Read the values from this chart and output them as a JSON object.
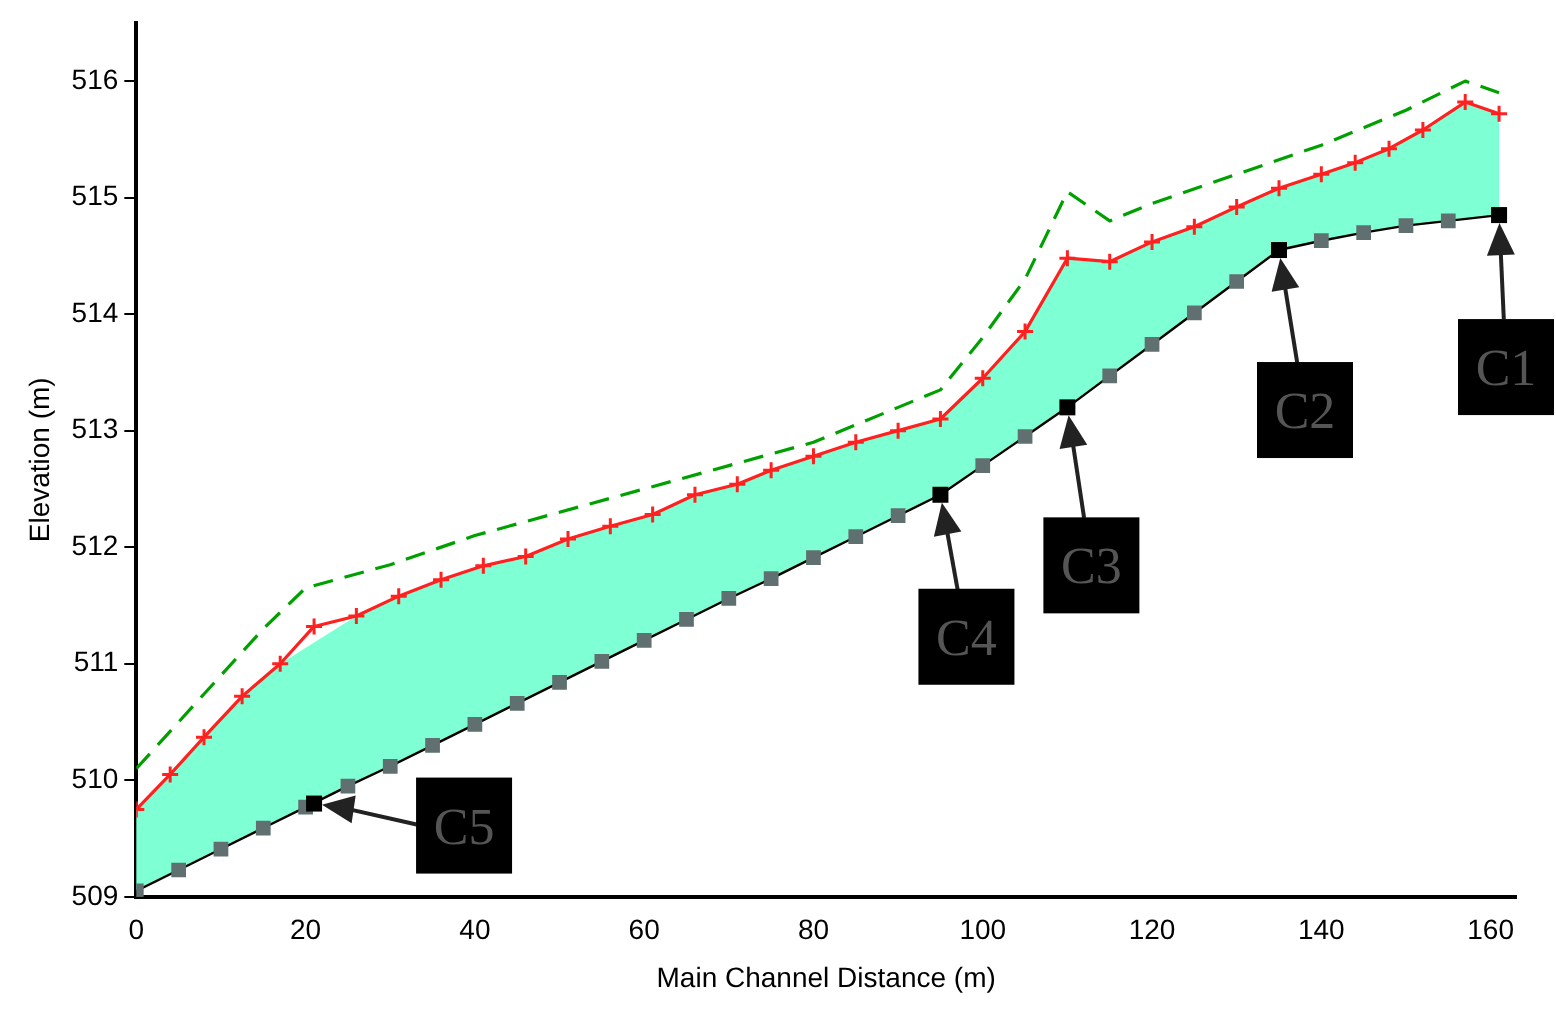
{
  "chart_data": {
    "type": "line",
    "xlabel": "Main Channel Distance (m)",
    "ylabel": "Elevation (m)",
    "xlim": [
      0,
      163
    ],
    "xticks": [
      0,
      20,
      40,
      60,
      80,
      100,
      120,
      140,
      160
    ],
    "ylim": [
      509,
      516.5
    ],
    "yticks": [
      509,
      510,
      511,
      512,
      513,
      514,
      515,
      516
    ],
    "grid": false,
    "legend": false,
    "series": [
      {
        "color": "#00a000",
        "line_style": "dashed",
        "marker": "none",
        "x": [
          0,
          5,
          10,
          15,
          20,
          30,
          40,
          50,
          60,
          70,
          80,
          90,
          95,
          100,
          105,
          110,
          115,
          120,
          130,
          140,
          150,
          157,
          161
        ],
        "values": [
          510.1,
          510.5,
          510.9,
          511.3,
          511.65,
          511.85,
          512.1,
          512.3,
          512.5,
          512.7,
          512.9,
          513.2,
          513.35,
          513.8,
          514.3,
          515.05,
          514.8,
          514.95,
          515.2,
          515.45,
          515.75,
          516.0,
          515.9
        ]
      },
      {
        "color": "#ff2020",
        "marker": "cross",
        "x": [
          0,
          4,
          8,
          12.5,
          17,
          21,
          26,
          31,
          36,
          41,
          46,
          51,
          56,
          61,
          66,
          71,
          75,
          80,
          85,
          90,
          95,
          100,
          105,
          110,
          115,
          120,
          125,
          130,
          135,
          140,
          144,
          148,
          152,
          157,
          161
        ],
        "values": [
          509.75,
          510.05,
          510.37,
          510.72,
          511.0,
          511.32,
          511.41,
          511.58,
          511.72,
          511.84,
          511.92,
          512.07,
          512.18,
          512.28,
          512.45,
          512.54,
          512.66,
          512.78,
          512.9,
          513.0,
          513.1,
          513.45,
          513.85,
          514.48,
          514.45,
          514.62,
          514.75,
          514.92,
          515.08,
          515.2,
          515.3,
          515.42,
          515.58,
          515.82,
          515.72
        ],
        "lower": [
          509.05,
          509.19,
          509.34,
          509.5,
          509.66,
          null,
          509.98,
          510.16,
          510.34,
          510.52,
          510.7,
          510.88,
          511.05,
          511.23,
          511.41,
          511.59,
          511.73,
          511.91,
          512.09,
          512.27,
          512.45,
          512.7,
          512.95,
          513.2,
          513.47,
          513.74,
          514.01,
          514.28,
          514.55,
          514.63,
          514.69,
          514.74,
          514.78,
          514.81,
          514.85
        ],
        "upper": [
          509.75,
          510.05,
          510.37,
          510.72,
          511.0,
          null,
          511.41,
          511.58,
          511.72,
          511.84,
          511.92,
          512.07,
          512.18,
          512.28,
          512.45,
          512.54,
          512.66,
          512.78,
          512.9,
          513.0,
          513.1,
          513.45,
          513.85,
          514.48,
          514.45,
          514.62,
          514.75,
          514.92,
          515.08,
          515.2,
          515.3,
          515.42,
          515.58,
          515.82,
          515.72
        ]
      },
      {
        "color": "#607070",
        "marker": "square",
        "x": [
          0,
          5,
          10,
          15,
          20,
          25,
          30,
          35,
          40,
          45,
          50,
          55,
          60,
          65,
          70,
          75,
          80,
          85,
          90,
          95,
          100,
          105,
          110,
          115,
          120,
          125,
          130,
          135,
          140,
          145,
          150,
          155,
          161
        ],
        "values": [
          509.05,
          509.23,
          509.41,
          509.59,
          509.77,
          509.95,
          510.12,
          510.3,
          510.48,
          510.66,
          510.84,
          511.02,
          511.2,
          511.38,
          511.56,
          511.73,
          511.91,
          512.09,
          512.27,
          512.45,
          512.7,
          512.95,
          513.2,
          513.47,
          513.74,
          514.01,
          514.28,
          514.55,
          514.63,
          514.7,
          514.76,
          514.8,
          514.85
        ]
      }
    ],
    "annotations": [
      {
        "text": "C1",
        "x": 161,
        "y": 514.85
      },
      {
        "text": "C2",
        "x": 135,
        "y": 514.55
      },
      {
        "text": "C3",
        "x": 110,
        "y": 513.2
      },
      {
        "text": "C4",
        "x": 95,
        "y": 512.45
      },
      {
        "text": "C5",
        "x": 21,
        "y": 509.8
      }
    ]
  }
}
